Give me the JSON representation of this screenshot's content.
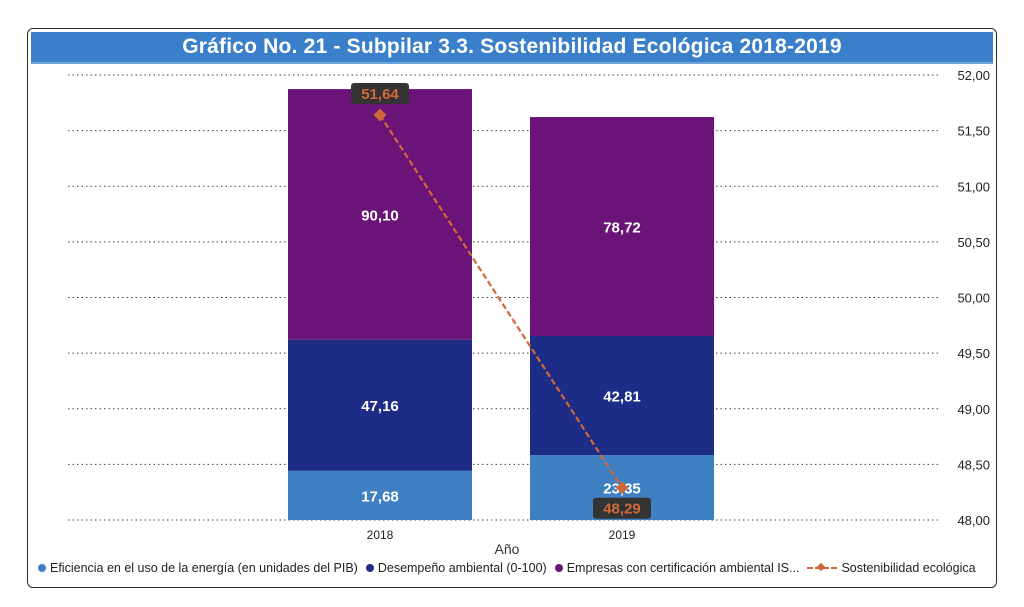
{
  "chart_data": {
    "type": "bar",
    "title": "Gráfico No. 21 - Subpilar 3.3. Sostenibilidad Ecológica 2018-2019",
    "xlabel": "Año",
    "ylabel": "",
    "categories": [
      "2018",
      "2019"
    ],
    "stacked_series": [
      {
        "name": "Eficiencia en el uso de la energía (en unidades del PIB)",
        "color": "#3f80c3",
        "values": [
          17.68,
          23.35
        ],
        "value_labels": [
          "17,68",
          "23,35"
        ]
      },
      {
        "name": "Desempeño ambiental (0-100)",
        "color": "#1d2c86",
        "values": [
          47.16,
          42.81
        ],
        "value_labels": [
          "47,16",
          "42,81"
        ]
      },
      {
        "name": "Empresas con certificación ambiental IS...",
        "color": "#6a1478",
        "values": [
          90.1,
          78.72
        ],
        "value_labels": [
          "90,10",
          "78,72"
        ]
      }
    ],
    "line_series": {
      "name": "Sostenibilidad ecológica",
      "color": "#d0683a",
      "axis": "right",
      "values": [
        51.64,
        48.29
      ],
      "value_labels": [
        "51,64",
        "48,29"
      ]
    },
    "right_axis": {
      "ylim": [
        48.0,
        52.0
      ],
      "ticks": [
        48.0,
        48.5,
        49.0,
        49.5,
        50.0,
        50.5,
        51.0,
        51.5,
        52.0
      ],
      "tick_labels": [
        "48,00",
        "48,50",
        "49,00",
        "49,50",
        "50,00",
        "50,50",
        "51,00",
        "51,50",
        "52,00"
      ]
    },
    "left_axis_scale_max": 160,
    "grid": true,
    "legend": "bottom"
  }
}
